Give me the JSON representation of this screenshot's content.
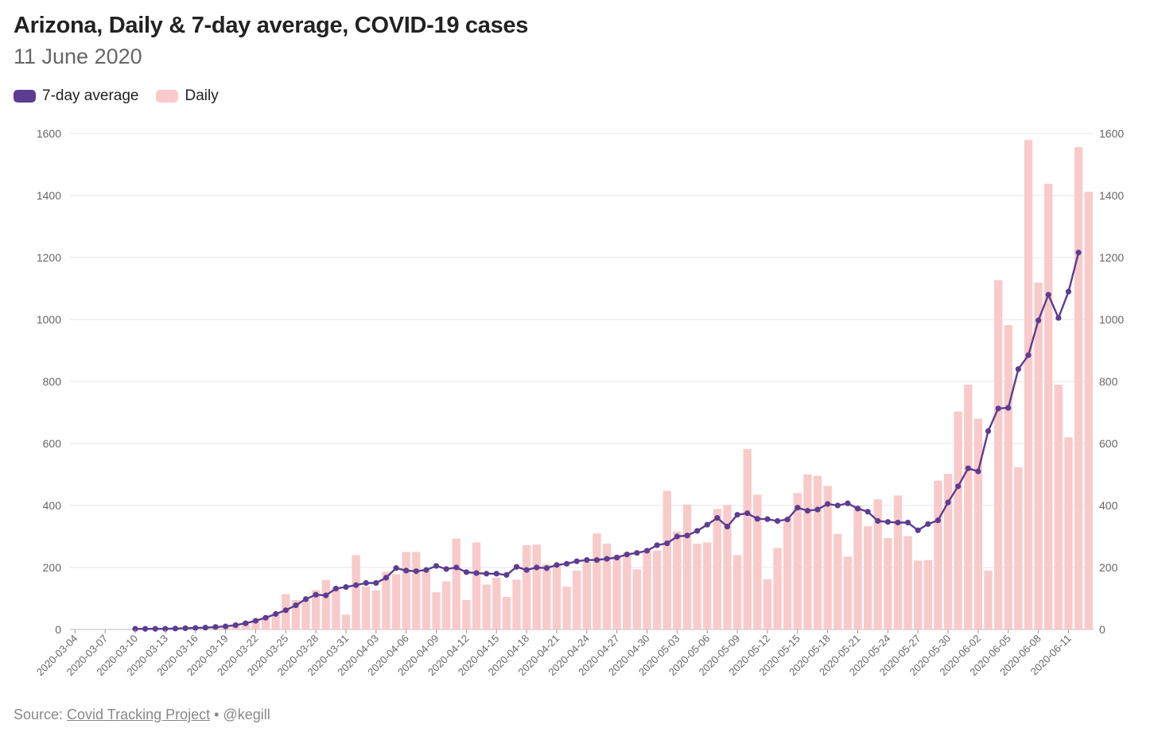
{
  "chart_data": {
    "type": "bar",
    "title": "Arizona, Daily & 7-day average, COVID-19 cases",
    "subtitle": "11 June 2020",
    "xlabel": "",
    "ylabel": "",
    "ylim": [
      0,
      1600
    ],
    "yticks": [
      0,
      200,
      400,
      600,
      800,
      1000,
      1200,
      1400,
      1600
    ],
    "grid": true,
    "legend_position": "top-left",
    "x_tick_labels": [
      "2020-03-04",
      "2020-03-07",
      "2020-03-10",
      "2020-03-13",
      "2020-03-16",
      "2020-03-19",
      "2020-03-22",
      "2020-03-25",
      "2020-03-28",
      "2020-03-31",
      "2020-04-03",
      "2020-04-06",
      "2020-04-09",
      "2020-04-12",
      "2020-04-15",
      "2020-04-18",
      "2020-04-21",
      "2020-04-24",
      "2020-04-27",
      "2020-04-30",
      "2020-05-03",
      "2020-05-06",
      "2020-05-09",
      "2020-05-12",
      "2020-05-15",
      "2020-05-18",
      "2020-05-21",
      "2020-05-24",
      "2020-05-27",
      "2020-05-30",
      "2020-06-02",
      "2020-06-05",
      "2020-06-08",
      "2020-06-11"
    ],
    "series": [
      {
        "name": "Daily",
        "color": "#f9caca",
        "start_date": "2020-03-04",
        "values": [
          0,
          0,
          0,
          0,
          0,
          0,
          2,
          3,
          3,
          4,
          5,
          4,
          5,
          6,
          8,
          8,
          13,
          22,
          35,
          41,
          50,
          114,
          95,
          95,
          127,
          160,
          137,
          48,
          240,
          138,
          126,
          186,
          178,
          250,
          250,
          190,
          120,
          155,
          293,
          95,
          281,
          145,
          167,
          105,
          161,
          272,
          274,
          210,
          208,
          138,
          190,
          218,
          310,
          277,
          240,
          248,
          194,
          255,
          255,
          447,
          316,
          403,
          277,
          281,
          389,
          402,
          240,
          582,
          435,
          162,
          263,
          360,
          440,
          500,
          496,
          463,
          308,
          235,
          400,
          333,
          420,
          295,
          432,
          301,
          222,
          224,
          480,
          502,
          703,
          790,
          680,
          190,
          1127,
          982,
          523,
          1579,
          1119,
          1438,
          790,
          620,
          1556,
          1412
        ]
      },
      {
        "name": "7-day average",
        "color": "#5c3d91",
        "start_date": "2020-03-10",
        "values": [
          2,
          2,
          2,
          2,
          3,
          4,
          5,
          6,
          8,
          10,
          14,
          20,
          28,
          38,
          50,
          62,
          78,
          98,
          112,
          110,
          132,
          137,
          143,
          150,
          150,
          167,
          198,
          190,
          188,
          192,
          205,
          195,
          200,
          185,
          182,
          180,
          180,
          176,
          202,
          192,
          200,
          198,
          208,
          212,
          220,
          224,
          224,
          228,
          232,
          242,
          247,
          254,
          272,
          278,
          300,
          303,
          318,
          338,
          360,
          332,
          370,
          375,
          357,
          356,
          350,
          355,
          393,
          383,
          387,
          405,
          400,
          407,
          390,
          380,
          350,
          347,
          345,
          345,
          320,
          340,
          352,
          410,
          462,
          520,
          510,
          640,
          713,
          715,
          840,
          885,
          997,
          1080,
          1005,
          1090,
          1216
        ]
      }
    ]
  },
  "legend": {
    "avg_label": "7-day average",
    "daily_label": "Daily"
  },
  "source": {
    "prefix": "Source: ",
    "link_text": "Covid Tracking Project",
    "suffix": " • @kegill"
  }
}
